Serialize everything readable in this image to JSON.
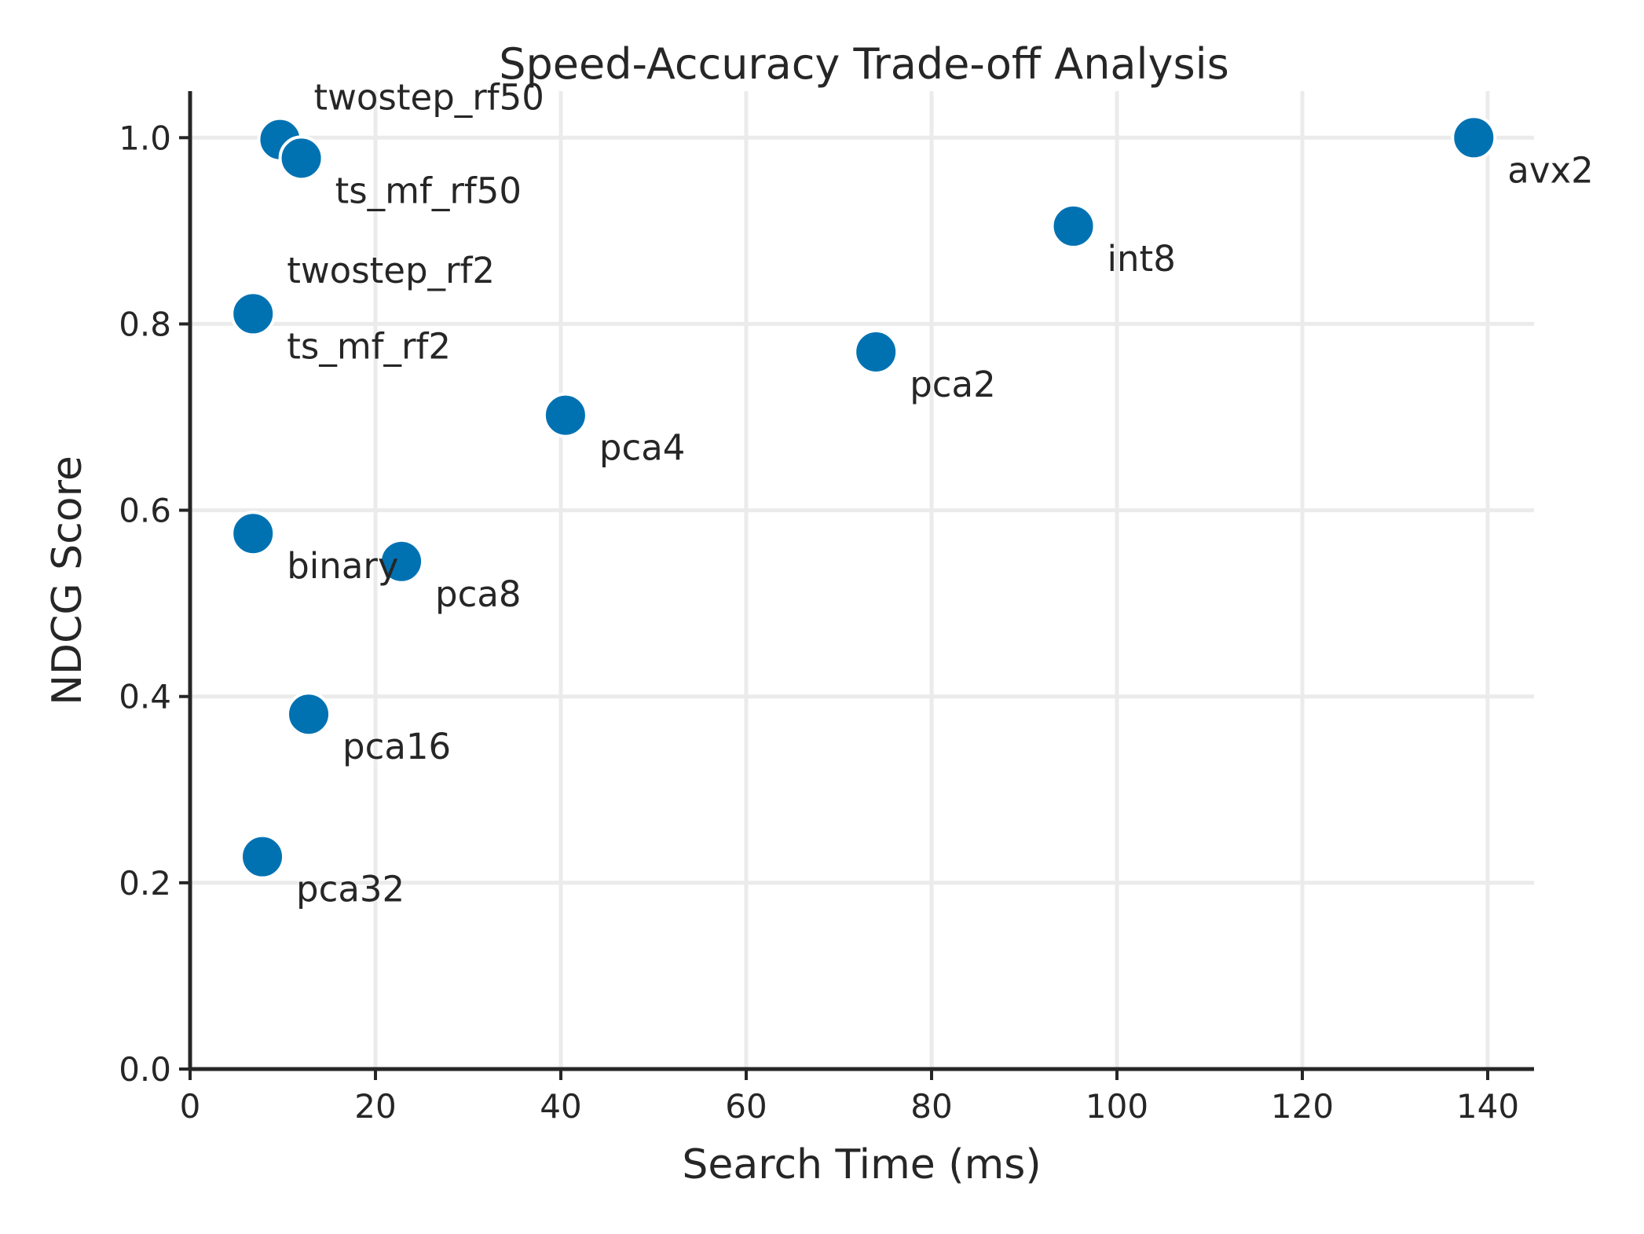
{
  "chart_data": {
    "type": "scatter",
    "title": "Speed-Accuracy Trade-off Analysis",
    "xlabel": "Search Time (ms)",
    "ylabel": "NDCG Score",
    "xlim": [
      0,
      145
    ],
    "ylim": [
      0,
      1.05
    ],
    "x_ticks": [
      "0",
      "20",
      "40",
      "60",
      "80",
      "100",
      "120",
      "140"
    ],
    "y_ticks": [
      "0.0",
      "0.2",
      "0.4",
      "0.6",
      "0.8",
      "1.0"
    ],
    "grid": true,
    "point_color": "#0072b2",
    "points": [
      {
        "label": "twostep_rf50",
        "x": 9.7,
        "y": 0.998
      },
      {
        "label": "ts_mf_rf50",
        "x": 12.0,
        "y": 0.978
      },
      {
        "label": "avx2",
        "x": 138.5,
        "y": 1.0
      },
      {
        "label": "int8",
        "x": 95.3,
        "y": 0.905
      },
      {
        "label": "twostep_rf2",
        "x": 6.8,
        "y": 0.812
      },
      {
        "label": "ts_mf_rf2",
        "x": 6.8,
        "y": 0.811
      },
      {
        "label": "pca2",
        "x": 74.0,
        "y": 0.77
      },
      {
        "label": "pca4",
        "x": 40.5,
        "y": 0.702
      },
      {
        "label": "binary",
        "x": 6.8,
        "y": 0.575
      },
      {
        "label": "pca8",
        "x": 22.8,
        "y": 0.545
      },
      {
        "label": "pca16",
        "x": 12.8,
        "y": 0.381
      },
      {
        "label": "pca32",
        "x": 7.8,
        "y": 0.228
      }
    ]
  }
}
